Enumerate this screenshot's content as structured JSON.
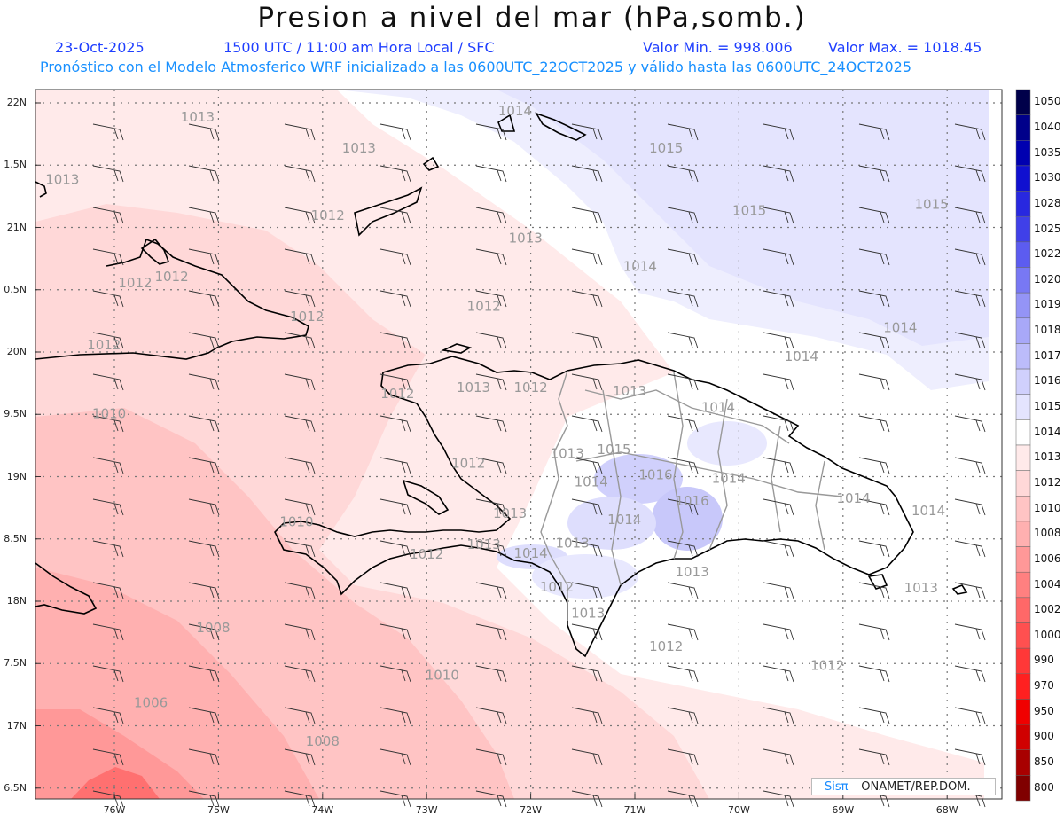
{
  "title": "Presion a nivel del mar (hPa,somb.)",
  "header": {
    "date": "23-Oct-2025",
    "time": "1500 UTC / 11:00 am Hora Local / SFC",
    "min_label": "Valor Min. = 998.006",
    "max_label": "Valor Max. = 1018.45",
    "model_line": "Pronóstico con el Modelo Atmosferico WRF inicializado a las 0600UTC_22OCT2025 y válido hasta las  0600UTC_24OCT2025"
  },
  "axes": {
    "lat_labels": [
      "22N",
      "1.5N",
      "21N",
      "0.5N",
      "20N",
      "9.5N",
      "19N",
      "8.5N",
      "18N",
      "7.5N",
      "17N",
      "6.5N"
    ],
    "lon_labels": [
      "76W",
      "75W",
      "74W",
      "73W",
      "72W",
      "71W",
      "70W",
      "69W",
      "68W"
    ]
  },
  "legend": {
    "levels": [
      "1050",
      "1040",
      "1035",
      "1030",
      "1028",
      "1025",
      "1022",
      "1020",
      "1019",
      "1018",
      "1017",
      "1016",
      "1015",
      "1014",
      "1013",
      "1012",
      "1010",
      "1008",
      "1006",
      "1004",
      "1002",
      "1000",
      "990",
      "970",
      "950",
      "900",
      "850",
      "800"
    ],
    "colors": [
      "#00004a",
      "#00008a",
      "#0000b0",
      "#1010d0",
      "#2828e0",
      "#4040e8",
      "#5c5cf0",
      "#7878f4",
      "#9494f6",
      "#a8a8f8",
      "#bcbcfa",
      "#d0d0fc",
      "#e4e4fe",
      "#ffffff",
      "#ffeaea",
      "#ffd8d8",
      "#ffc4c4",
      "#ffb0b0",
      "#ff9898",
      "#ff8080",
      "#ff6868",
      "#ff5050",
      "#ff3838",
      "#ff2020",
      "#f00000",
      "#d00000",
      "#a80000",
      "#800000"
    ]
  },
  "contours": [
    {
      "label": "1013",
      "lon": -75.2,
      "lat": 21.85
    },
    {
      "label": "1013",
      "lon": -73.65,
      "lat": 21.6
    },
    {
      "label": "1013",
      "lon": -76.5,
      "lat": 21.35
    },
    {
      "label": "1014",
      "lon": -72.15,
      "lat": 21.9
    },
    {
      "label": "1015",
      "lon": -70.7,
      "lat": 21.6
    },
    {
      "label": "1012",
      "lon": -73.95,
      "lat": 21.06
    },
    {
      "label": "1013",
      "lon": -72.05,
      "lat": 20.88
    },
    {
      "label": "1015",
      "lon": -69.9,
      "lat": 21.1
    },
    {
      "label": "1015",
      "lon": -68.15,
      "lat": 21.15
    },
    {
      "label": "1012",
      "lon": -75.8,
      "lat": 20.52
    },
    {
      "label": "1012",
      "lon": -75.45,
      "lat": 20.57
    },
    {
      "label": "1014",
      "lon": -70.95,
      "lat": 20.65
    },
    {
      "label": "1012",
      "lon": -74.15,
      "lat": 20.25
    },
    {
      "label": "1012",
      "lon": -72.45,
      "lat": 20.33
    },
    {
      "label": "1012",
      "lon": -76.1,
      "lat": 20.02
    },
    {
      "label": "1014",
      "lon": -68.45,
      "lat": 20.16
    },
    {
      "label": "1014",
      "lon": -69.4,
      "lat": 19.93
    },
    {
      "label": "1012",
      "lon": -73.28,
      "lat": 19.63
    },
    {
      "label": "1013",
      "lon": -72.55,
      "lat": 19.68
    },
    {
      "label": "1012",
      "lon": -72.0,
      "lat": 19.68
    },
    {
      "label": "1013",
      "lon": -71.05,
      "lat": 19.65
    },
    {
      "label": "1010",
      "lon": -76.05,
      "lat": 19.47
    },
    {
      "label": "1014",
      "lon": -70.2,
      "lat": 19.52
    },
    {
      "label": "1015",
      "lon": -71.2,
      "lat": 19.18
    },
    {
      "label": "1013",
      "lon": -71.65,
      "lat": 19.15
    },
    {
      "label": "1012",
      "lon": -72.6,
      "lat": 19.07
    },
    {
      "label": "1016",
      "lon": -70.8,
      "lat": 18.98
    },
    {
      "label": "1014",
      "lon": -70.1,
      "lat": 18.95
    },
    {
      "label": "1014",
      "lon": -71.42,
      "lat": 18.92
    },
    {
      "label": "1016",
      "lon": -70.45,
      "lat": 18.77
    },
    {
      "label": "1014",
      "lon": -68.9,
      "lat": 18.79
    },
    {
      "label": "1014",
      "lon": -68.18,
      "lat": 18.69
    },
    {
      "label": "1013",
      "lon": -72.2,
      "lat": 18.67
    },
    {
      "label": "1014",
      "lon": -71.1,
      "lat": 18.62
    },
    {
      "label": "1010",
      "lon": -74.25,
      "lat": 18.6
    },
    {
      "label": "1013",
      "lon": -72.45,
      "lat": 18.42
    },
    {
      "label": "1013",
      "lon": -71.6,
      "lat": 18.43
    },
    {
      "label": "1014",
      "lon": -72.0,
      "lat": 18.35
    },
    {
      "label": "1012",
      "lon": -73.0,
      "lat": 18.34
    },
    {
      "label": "1013",
      "lon": -70.45,
      "lat": 18.2
    },
    {
      "label": "1012",
      "lon": -71.75,
      "lat": 18.08
    },
    {
      "label": "1013",
      "lon": -68.25,
      "lat": 18.07
    },
    {
      "label": "1013",
      "lon": -71.45,
      "lat": 17.87
    },
    {
      "label": "1008",
      "lon": -75.05,
      "lat": 17.75
    },
    {
      "label": "1012",
      "lon": -70.7,
      "lat": 17.6
    },
    {
      "label": "1012",
      "lon": -69.15,
      "lat": 17.45
    },
    {
      "label": "1010",
      "lon": -72.85,
      "lat": 17.37
    },
    {
      "label": "1006",
      "lon": -75.65,
      "lat": 17.15
    },
    {
      "label": "1008",
      "lon": -74.0,
      "lat": 16.84
    }
  ],
  "credit": {
    "brand": "Sisπ",
    "text": "– ONAMET/REP.DOM."
  }
}
